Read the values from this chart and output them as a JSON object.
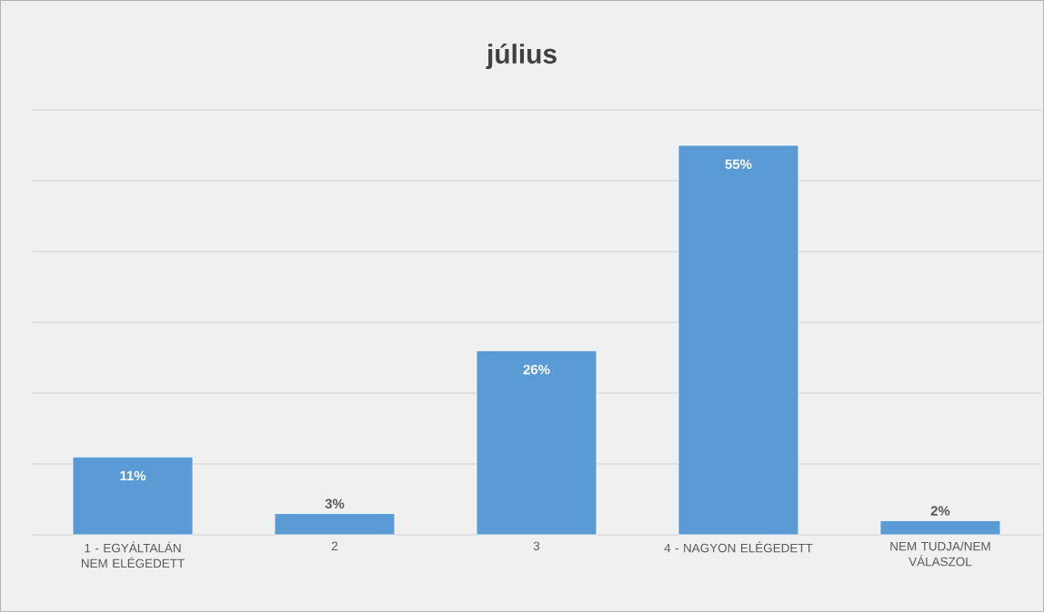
{
  "chart_data": {
    "type": "bar",
    "title": "július",
    "categories": [
      "1 - EGYÁLTALÁN NEM ELÉGEDETT",
      "2",
      "3",
      "4 - NAGYON ELÉGEDETT",
      "NEM TUDJA/NEM VÁLASZOL"
    ],
    "values": [
      11,
      3,
      26,
      55,
      2
    ],
    "value_labels": [
      "11%",
      "3%",
      "26%",
      "55%",
      "2%"
    ],
    "color": "#5b9bd5",
    "ylim": [
      0,
      60
    ],
    "yticks": [
      {
        "value": 0,
        "label": null
      },
      {
        "value": 10,
        "label": null
      },
      {
        "value": 20,
        "label": null
      },
      {
        "value": 30,
        "label": null
      },
      {
        "value": 40,
        "label": null
      },
      {
        "value": 50,
        "label": null
      },
      {
        "value": 60,
        "label": null
      }
    ],
    "grid": "y",
    "tick_labels": "x"
  }
}
